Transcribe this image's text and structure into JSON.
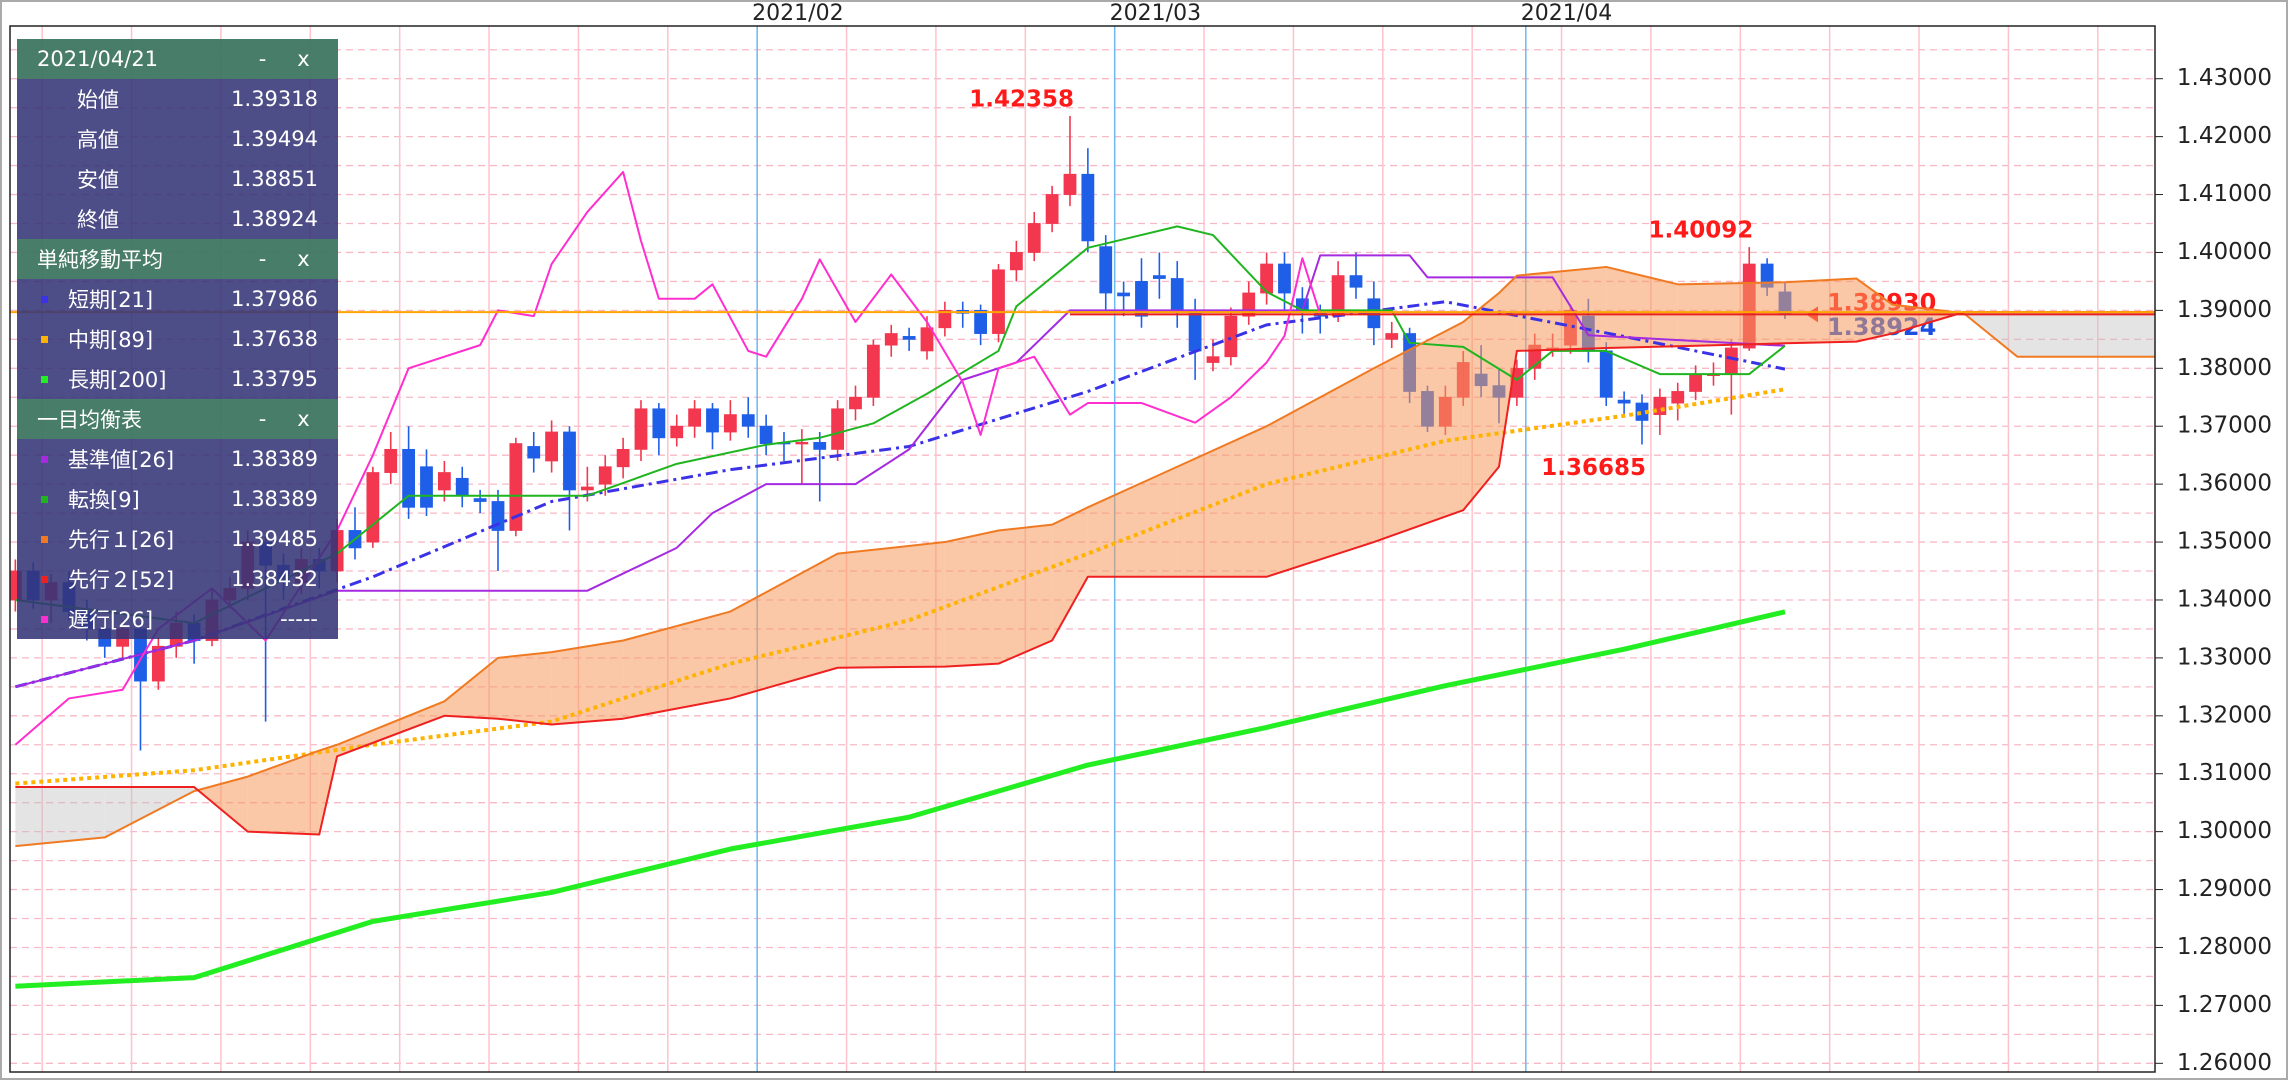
{
  "chart_data": {
    "type": "candlestick",
    "xlim": [
      -0.3,
      119.7
    ],
    "ylim": [
      1.2585,
      1.4391
    ],
    "yticks": [
      {
        "value": 1.26,
        "label": "1.26000"
      },
      {
        "value": 1.27,
        "label": "1.27000"
      },
      {
        "value": 1.28,
        "label": "1.28000"
      },
      {
        "value": 1.29,
        "label": "1.29000"
      },
      {
        "value": 1.3,
        "label": "1.30000"
      },
      {
        "value": 1.31,
        "label": "1.31000"
      },
      {
        "value": 1.32,
        "label": "1.32000"
      },
      {
        "value": 1.33,
        "label": "1.33000"
      },
      {
        "value": 1.34,
        "label": "1.34000"
      },
      {
        "value": 1.35,
        "label": "1.35000"
      },
      {
        "value": 1.36,
        "label": "1.36000"
      },
      {
        "value": 1.37,
        "label": "1.37000"
      },
      {
        "value": 1.38,
        "label": "1.38000"
      },
      {
        "value": 1.39,
        "label": "1.39000"
      },
      {
        "value": 1.4,
        "label": "1.40000"
      },
      {
        "value": 1.41,
        "label": "1.41000"
      },
      {
        "value": 1.42,
        "label": "1.42000"
      },
      {
        "value": 1.43,
        "label": "1.43000"
      }
    ],
    "y_minor_grid": [
      1.265,
      1.275,
      1.285,
      1.295,
      1.305,
      1.315,
      1.325,
      1.335,
      1.345,
      1.355,
      1.365,
      1.375,
      1.385,
      1.395,
      1.405,
      1.415,
      1.425,
      1.435
    ],
    "x_grid": [
      1.5,
      6.5,
      11.5,
      16.5,
      21.5,
      26.5,
      31.5,
      36.5,
      46.5,
      51.5,
      56.5,
      66.5,
      71.5,
      76.5,
      81.5,
      86.5,
      91.5,
      96.5,
      101.5,
      106.5,
      111.5,
      116.5
    ],
    "xticks": [
      {
        "value": 41.5,
        "label": "2021/02"
      },
      {
        "value": 61.5,
        "label": "2021/03"
      },
      {
        "value": 84.5,
        "label": "2021/04"
      }
    ],
    "candles": {
      "up_color": "#f2374f",
      "down_color": "#1f5fe8",
      "open": [
        1.34,
        1.345,
        1.34,
        1.343,
        1.338,
        1.335,
        1.332,
        1.335,
        1.326,
        1.332,
        1.336,
        1.333,
        1.34,
        1.342,
        1.35,
        1.346,
        1.343,
        1.347,
        1.345,
        1.352,
        1.35,
        1.362,
        1.366,
        1.363,
        1.359,
        1.361,
        1.3575,
        1.357,
        1.352,
        1.3665,
        1.364,
        1.369,
        1.359,
        1.36,
        1.363,
        1.366,
        1.373,
        1.368,
        1.37,
        1.373,
        1.369,
        1.372,
        1.37,
        1.3672,
        1.367,
        1.3672,
        1.366,
        1.373,
        1.375,
        1.384,
        1.3855,
        1.383,
        1.387,
        1.39,
        1.39,
        1.386,
        1.397,
        1.4,
        1.405,
        1.41,
        1.4135,
        1.401,
        1.393,
        1.395,
        1.396,
        1.3955,
        1.39,
        1.381,
        1.382,
        1.389,
        1.393,
        1.398,
        1.392,
        1.3895,
        1.389,
        1.396,
        1.392,
        1.385,
        1.386,
        1.376,
        1.37,
        1.375,
        1.379,
        1.377,
        1.375,
        1.38,
        1.3835,
        1.384,
        1.389,
        1.383,
        1.3745,
        1.374,
        1.372,
        1.374,
        1.376,
        1.379,
        1.379,
        1.3835,
        1.398,
        1.39318
      ],
      "high": [
        1.347,
        1.3465,
        1.3445,
        1.345,
        1.34,
        1.337,
        1.3365,
        1.336,
        1.3335,
        1.338,
        1.3375,
        1.342,
        1.344,
        1.352,
        1.351,
        1.348,
        1.349,
        1.349,
        1.354,
        1.356,
        1.363,
        1.369,
        1.37,
        1.366,
        1.364,
        1.363,
        1.359,
        1.359,
        1.368,
        1.369,
        1.371,
        1.37,
        1.363,
        1.365,
        1.368,
        1.3745,
        1.374,
        1.372,
        1.3745,
        1.374,
        1.3745,
        1.375,
        1.372,
        1.369,
        1.3695,
        1.369,
        1.3745,
        1.377,
        1.385,
        1.3875,
        1.387,
        1.389,
        1.3915,
        1.3915,
        1.391,
        1.398,
        1.402,
        1.407,
        1.4115,
        1.42358,
        1.418,
        1.403,
        1.395,
        1.399,
        1.4,
        1.3985,
        1.392,
        1.385,
        1.3905,
        1.395,
        1.4,
        1.4,
        1.394,
        1.391,
        1.3985,
        1.4,
        1.395,
        1.388,
        1.387,
        1.377,
        1.377,
        1.383,
        1.384,
        1.38,
        1.3815,
        1.386,
        1.386,
        1.391,
        1.392,
        1.3845,
        1.376,
        1.3755,
        1.3765,
        1.3775,
        1.3805,
        1.381,
        1.385,
        1.40092,
        1.399,
        1.39494
      ],
      "low": [
        1.338,
        1.3385,
        1.336,
        1.3365,
        1.333,
        1.33,
        1.33,
        1.314,
        1.3245,
        1.33,
        1.329,
        1.332,
        1.3385,
        1.34,
        1.319,
        1.34,
        1.341,
        1.342,
        1.343,
        1.347,
        1.349,
        1.36,
        1.354,
        1.3545,
        1.357,
        1.356,
        1.355,
        1.345,
        1.351,
        1.362,
        1.362,
        1.352,
        1.357,
        1.358,
        1.361,
        1.364,
        1.365,
        1.3665,
        1.368,
        1.366,
        1.3675,
        1.368,
        1.365,
        1.364,
        1.36,
        1.357,
        1.364,
        1.371,
        1.3735,
        1.382,
        1.383,
        1.3815,
        1.3855,
        1.387,
        1.384,
        1.3845,
        1.395,
        1.3985,
        1.4035,
        1.408,
        1.4,
        1.39,
        1.389,
        1.387,
        1.392,
        1.387,
        1.378,
        1.3795,
        1.3805,
        1.3875,
        1.391,
        1.39,
        1.386,
        1.386,
        1.388,
        1.392,
        1.384,
        1.3835,
        1.374,
        1.369,
        1.3685,
        1.3735,
        1.375,
        1.3705,
        1.3735,
        1.378,
        1.382,
        1.3825,
        1.381,
        1.3735,
        1.372,
        1.36685,
        1.3685,
        1.371,
        1.3745,
        1.377,
        1.372,
        1.383,
        1.3925,
        1.38851
      ],
      "close": [
        1.345,
        1.34,
        1.343,
        1.338,
        1.335,
        1.332,
        1.335,
        1.326,
        1.332,
        1.336,
        1.333,
        1.34,
        1.342,
        1.35,
        1.346,
        1.343,
        1.347,
        1.345,
        1.352,
        1.349,
        1.362,
        1.366,
        1.356,
        1.356,
        1.362,
        1.358,
        1.357,
        1.352,
        1.367,
        1.3645,
        1.369,
        1.359,
        1.3595,
        1.363,
        1.366,
        1.373,
        1.368,
        1.37,
        1.373,
        1.369,
        1.372,
        1.37,
        1.367,
        1.367,
        1.3672,
        1.366,
        1.373,
        1.375,
        1.384,
        1.386,
        1.385,
        1.387,
        1.39,
        1.3895,
        1.386,
        1.397,
        1.4,
        1.405,
        1.41,
        1.4135,
        1.402,
        1.393,
        1.3925,
        1.389,
        1.3955,
        1.39,
        1.383,
        1.382,
        1.389,
        1.393,
        1.398,
        1.393,
        1.39,
        1.389,
        1.396,
        1.394,
        1.387,
        1.386,
        1.376,
        1.37,
        1.375,
        1.381,
        1.377,
        1.375,
        1.38,
        1.384,
        1.3835,
        1.39,
        1.383,
        1.375,
        1.374,
        1.371,
        1.375,
        1.376,
        1.379,
        1.379,
        1.3835,
        1.398,
        1.394,
        1.38924
      ]
    },
    "cloud_colors": {
      "bullish": "#f59a5c",
      "bearish": "#c4c4c4"
    },
    "hlines": [
      {
        "value": 1.3897,
        "color": "#ffa500"
      },
      {
        "value": 1.3893,
        "color": "#e82020",
        "start": 59
      }
    ],
    "price_labels": [
      {
        "value": 1.3893,
        "label": "1.38930",
        "color": "#ff1a1a"
      },
      {
        "value": 1.38924,
        "color": "#1a4fe0"
      }
    ],
    "annotations": [
      {
        "x": 59,
        "value": 1.42358,
        "position": "above"
      },
      {
        "x": 97,
        "value": 1.40092,
        "position": "above"
      },
      {
        "x": 91,
        "value": 1.36685,
        "position": "below"
      }
    ],
    "panel": {
      "title": "2021/04/21",
      "buttons": [
        "-",
        "x"
      ],
      "rows": [
        {
          "label": "始値",
          "value": 1.39318
        },
        {
          "label": "高値",
          "value": 1.39494
        },
        {
          "label": "安値",
          "value": 1.38851
        },
        {
          "label": "終値",
          "value": 1.38924
        }
      ]
    },
    "series_groups": [
      {
        "title": "単純移動平均",
        "buttons": [
          "-",
          "x"
        ],
        "series": [
          {
            "name": "短期[21]",
            "color": "#3a32e6",
            "style": "dashdot",
            "width": 3,
            "latest": 1.37986,
            "x": [
              0,
              10,
              20,
              30,
              40,
              50,
              60,
              70,
              80,
              90,
              99
            ],
            "values": [
              1.325,
              1.333,
              1.344,
              1.357,
              1.3625,
              1.3665,
              1.376,
              1.3875,
              1.3915,
              1.3855,
              1.37986
            ]
          },
          {
            "name": "中期[89]",
            "color": "#ffb300",
            "style": "dotted",
            "width": 4,
            "latest": 1.37638,
            "x": [
              0,
              10,
              20,
              30,
              40,
              50,
              60,
              70,
              80,
              90,
              99
            ],
            "values": [
              1.3083,
              1.3106,
              1.315,
              1.319,
              1.329,
              1.3365,
              1.348,
              1.36,
              1.3675,
              1.3718,
              1.37638
            ]
          },
          {
            "name": "長期[200]",
            "color": "#22ee22",
            "style": "solid",
            "width": 5,
            "latest": 1.33795,
            "x": [
              0,
              10,
              20,
              30,
              40,
              50,
              60,
              70,
              80,
              90,
              99
            ],
            "values": [
              1.2733,
              1.2748,
              1.2845,
              1.2895,
              1.297,
              1.3025,
              1.3115,
              1.318,
              1.3252,
              1.3315,
              1.33795
            ]
          }
        ]
      },
      {
        "title": "一目均衡表",
        "buttons": [
          "-",
          "x"
        ],
        "series": [
          {
            "name": "基準値[26]",
            "color": "#a52ae0",
            "style": "solid",
            "width": 2,
            "latest": 1.38389,
            "x": [
              0,
              10,
              18,
              32,
              37,
              39,
              42,
              47,
              50,
              53,
              56,
              59,
              72,
              73,
              78,
              79,
              86,
              88,
              99
            ],
            "values": [
              1.325,
              1.333,
              1.3416,
              1.3416,
              1.349,
              1.355,
              1.36,
              1.36,
              1.366,
              1.378,
              1.381,
              1.39,
              1.39,
              1.3995,
              1.3995,
              1.3957,
              1.3957,
              1.3857,
              1.38389
            ]
          },
          {
            "name": "転換[9]",
            "color": "#1fb51f",
            "style": "solid",
            "width": 2,
            "latest": 1.38389,
            "x": [
              0,
              10,
              18,
              22,
              26,
              32,
              37,
              42,
              45,
              48,
              51,
              55,
              56,
              60,
              65,
              67,
              70,
              72,
              77,
              78,
              81,
              84,
              86,
              89,
              92,
              97,
              99
            ],
            "values": [
              1.34,
              1.336,
              1.348,
              1.358,
              1.358,
              1.358,
              1.3635,
              1.3668,
              1.368,
              1.3705,
              1.3756,
              1.383,
              1.3907,
              1.4008,
              1.4045,
              1.403,
              1.3932,
              1.39,
              1.39,
              1.3844,
              1.3837,
              1.378,
              1.383,
              1.383,
              1.379,
              1.379,
              1.38389
            ]
          },
          {
            "name": "先行１[26]",
            "color": "#f07a22",
            "style": "solid",
            "width": 2,
            "latest": 1.39485,
            "x": [
              0,
              5,
              10,
              13,
              17,
              18,
              24,
              27,
              30,
              34,
              40,
              46,
              52,
              55,
              58,
              60,
              65,
              70,
              76,
              81,
              83,
              84,
              89,
              93,
              99,
              103,
              105,
              109,
              112,
              116,
              119.7
            ],
            "values": [
              1.2975,
              1.299,
              1.307,
              1.3095,
              1.314,
              1.315,
              1.3225,
              1.33,
              1.331,
              1.333,
              1.338,
              1.348,
              1.35,
              1.352,
              1.353,
              1.356,
              1.363,
              1.37,
              1.38,
              1.388,
              1.393,
              1.396,
              1.3975,
              1.3945,
              1.39485,
              1.3955,
              1.391,
              1.3895,
              1.382,
              1.382,
              1.382
            ]
          },
          {
            "name": "先行２[52]",
            "color": "#ee2020",
            "style": "solid",
            "width": 2,
            "latest": 1.38432,
            "x": [
              0,
              5,
              10,
              13,
              17,
              18,
              24,
              27,
              30,
              34,
              40,
              46,
              52,
              55,
              58,
              60,
              65,
              70,
              76,
              81,
              83,
              84,
              89,
              93,
              99,
              103,
              105,
              109,
              112,
              116,
              119.7
            ],
            "values": [
              1.3077,
              1.3077,
              1.3077,
              1.3,
              1.2995,
              1.313,
              1.32,
              1.3195,
              1.3185,
              1.3195,
              1.323,
              1.3283,
              1.3285,
              1.329,
              1.333,
              1.344,
              1.344,
              1.344,
              1.35,
              1.3555,
              1.363,
              1.383,
              1.3835,
              1.3838,
              1.38432,
              1.3846,
              1.386,
              1.3897,
              1.3897,
              1.3897,
              1.3897
            ]
          },
          {
            "name": "遅行[26]",
            "color": "#ff2ecf",
            "style": "solid",
            "width": 2,
            "latest": "-----",
            "x": [
              0,
              3,
              6,
              8,
              11,
              14,
              18,
              20,
              22,
              26,
              27,
              29,
              30,
              32,
              34,
              35,
              36,
              38,
              39,
              41,
              42,
              44,
              45,
              47,
              49,
              51,
              53,
              54,
              55,
              57,
              59,
              60,
              63,
              66,
              68,
              70,
              71,
              72,
              73
            ],
            "values": [
              1.315,
              1.323,
              1.3245,
              1.335,
              1.342,
              1.333,
              1.352,
              1.365,
              1.38,
              1.384,
              1.39,
              1.389,
              1.398,
              1.407,
              1.4139,
              1.402,
              1.392,
              1.392,
              1.3945,
              1.383,
              1.382,
              1.392,
              1.3988,
              1.388,
              1.3962,
              1.388,
              1.3776,
              1.3685,
              1.38,
              1.382,
              1.372,
              1.374,
              1.374,
              1.3706,
              1.375,
              1.381,
              1.3856,
              1.399,
              1.38924
            ]
          }
        ]
      }
    ]
  }
}
